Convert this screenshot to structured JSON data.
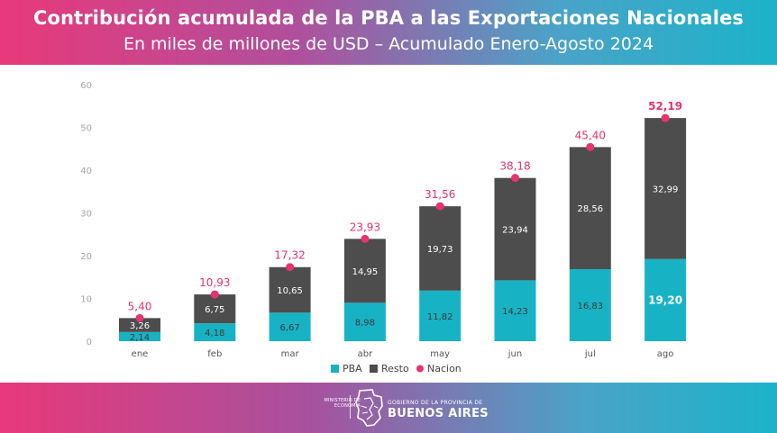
{
  "header": {
    "title": "Contribución acumulada de la PBA a las Exportaciones Nacionales",
    "subtitle": "En miles de millones de USD – Acumulado Enero-Agosto 2024"
  },
  "chart_data": {
    "type": "bar",
    "stacked": true,
    "categories": [
      "ene",
      "feb",
      "mar",
      "abr",
      "may",
      "jun",
      "jul",
      "ago"
    ],
    "series": [
      {
        "name": "PBA",
        "color": "#17b3c4",
        "values": [
          2.14,
          4.18,
          6.67,
          8.98,
          11.82,
          14.23,
          16.83,
          19.2
        ],
        "labels": [
          "2,14",
          "4,18",
          "6,67",
          "8,98",
          "11,82",
          "14,23",
          "16,83",
          "19,20"
        ]
      },
      {
        "name": "Resto",
        "color": "#4d4d4d",
        "values": [
          3.26,
          6.75,
          10.65,
          14.95,
          19.73,
          23.94,
          28.56,
          32.99
        ],
        "labels": [
          "3,26",
          "6,75",
          "10,65",
          "14,95",
          "19,73",
          "23,94",
          "28,56",
          "32,99"
        ]
      },
      {
        "name": "Nacion",
        "type": "scatter",
        "color": "#e8336e",
        "values": [
          5.4,
          10.93,
          17.32,
          23.93,
          31.56,
          38.18,
          45.4,
          52.19
        ],
        "labels": [
          "5,40",
          "10,93",
          "17,32",
          "23,93",
          "31,56",
          "38,18",
          "45,40",
          "52,19"
        ]
      }
    ],
    "ylim": [
      0,
      60
    ],
    "yticks": [
      "0",
      "10",
      "20",
      "30",
      "40",
      "50",
      "60"
    ],
    "grid": false,
    "legend": "bottom"
  },
  "footer": {
    "ministry_label": "MINISTERIO DE ECONOMÍA",
    "gov_line1": "GOBIERNO DE LA PROVINCIA DE",
    "gov_line2": "BUENOS AIRES"
  }
}
